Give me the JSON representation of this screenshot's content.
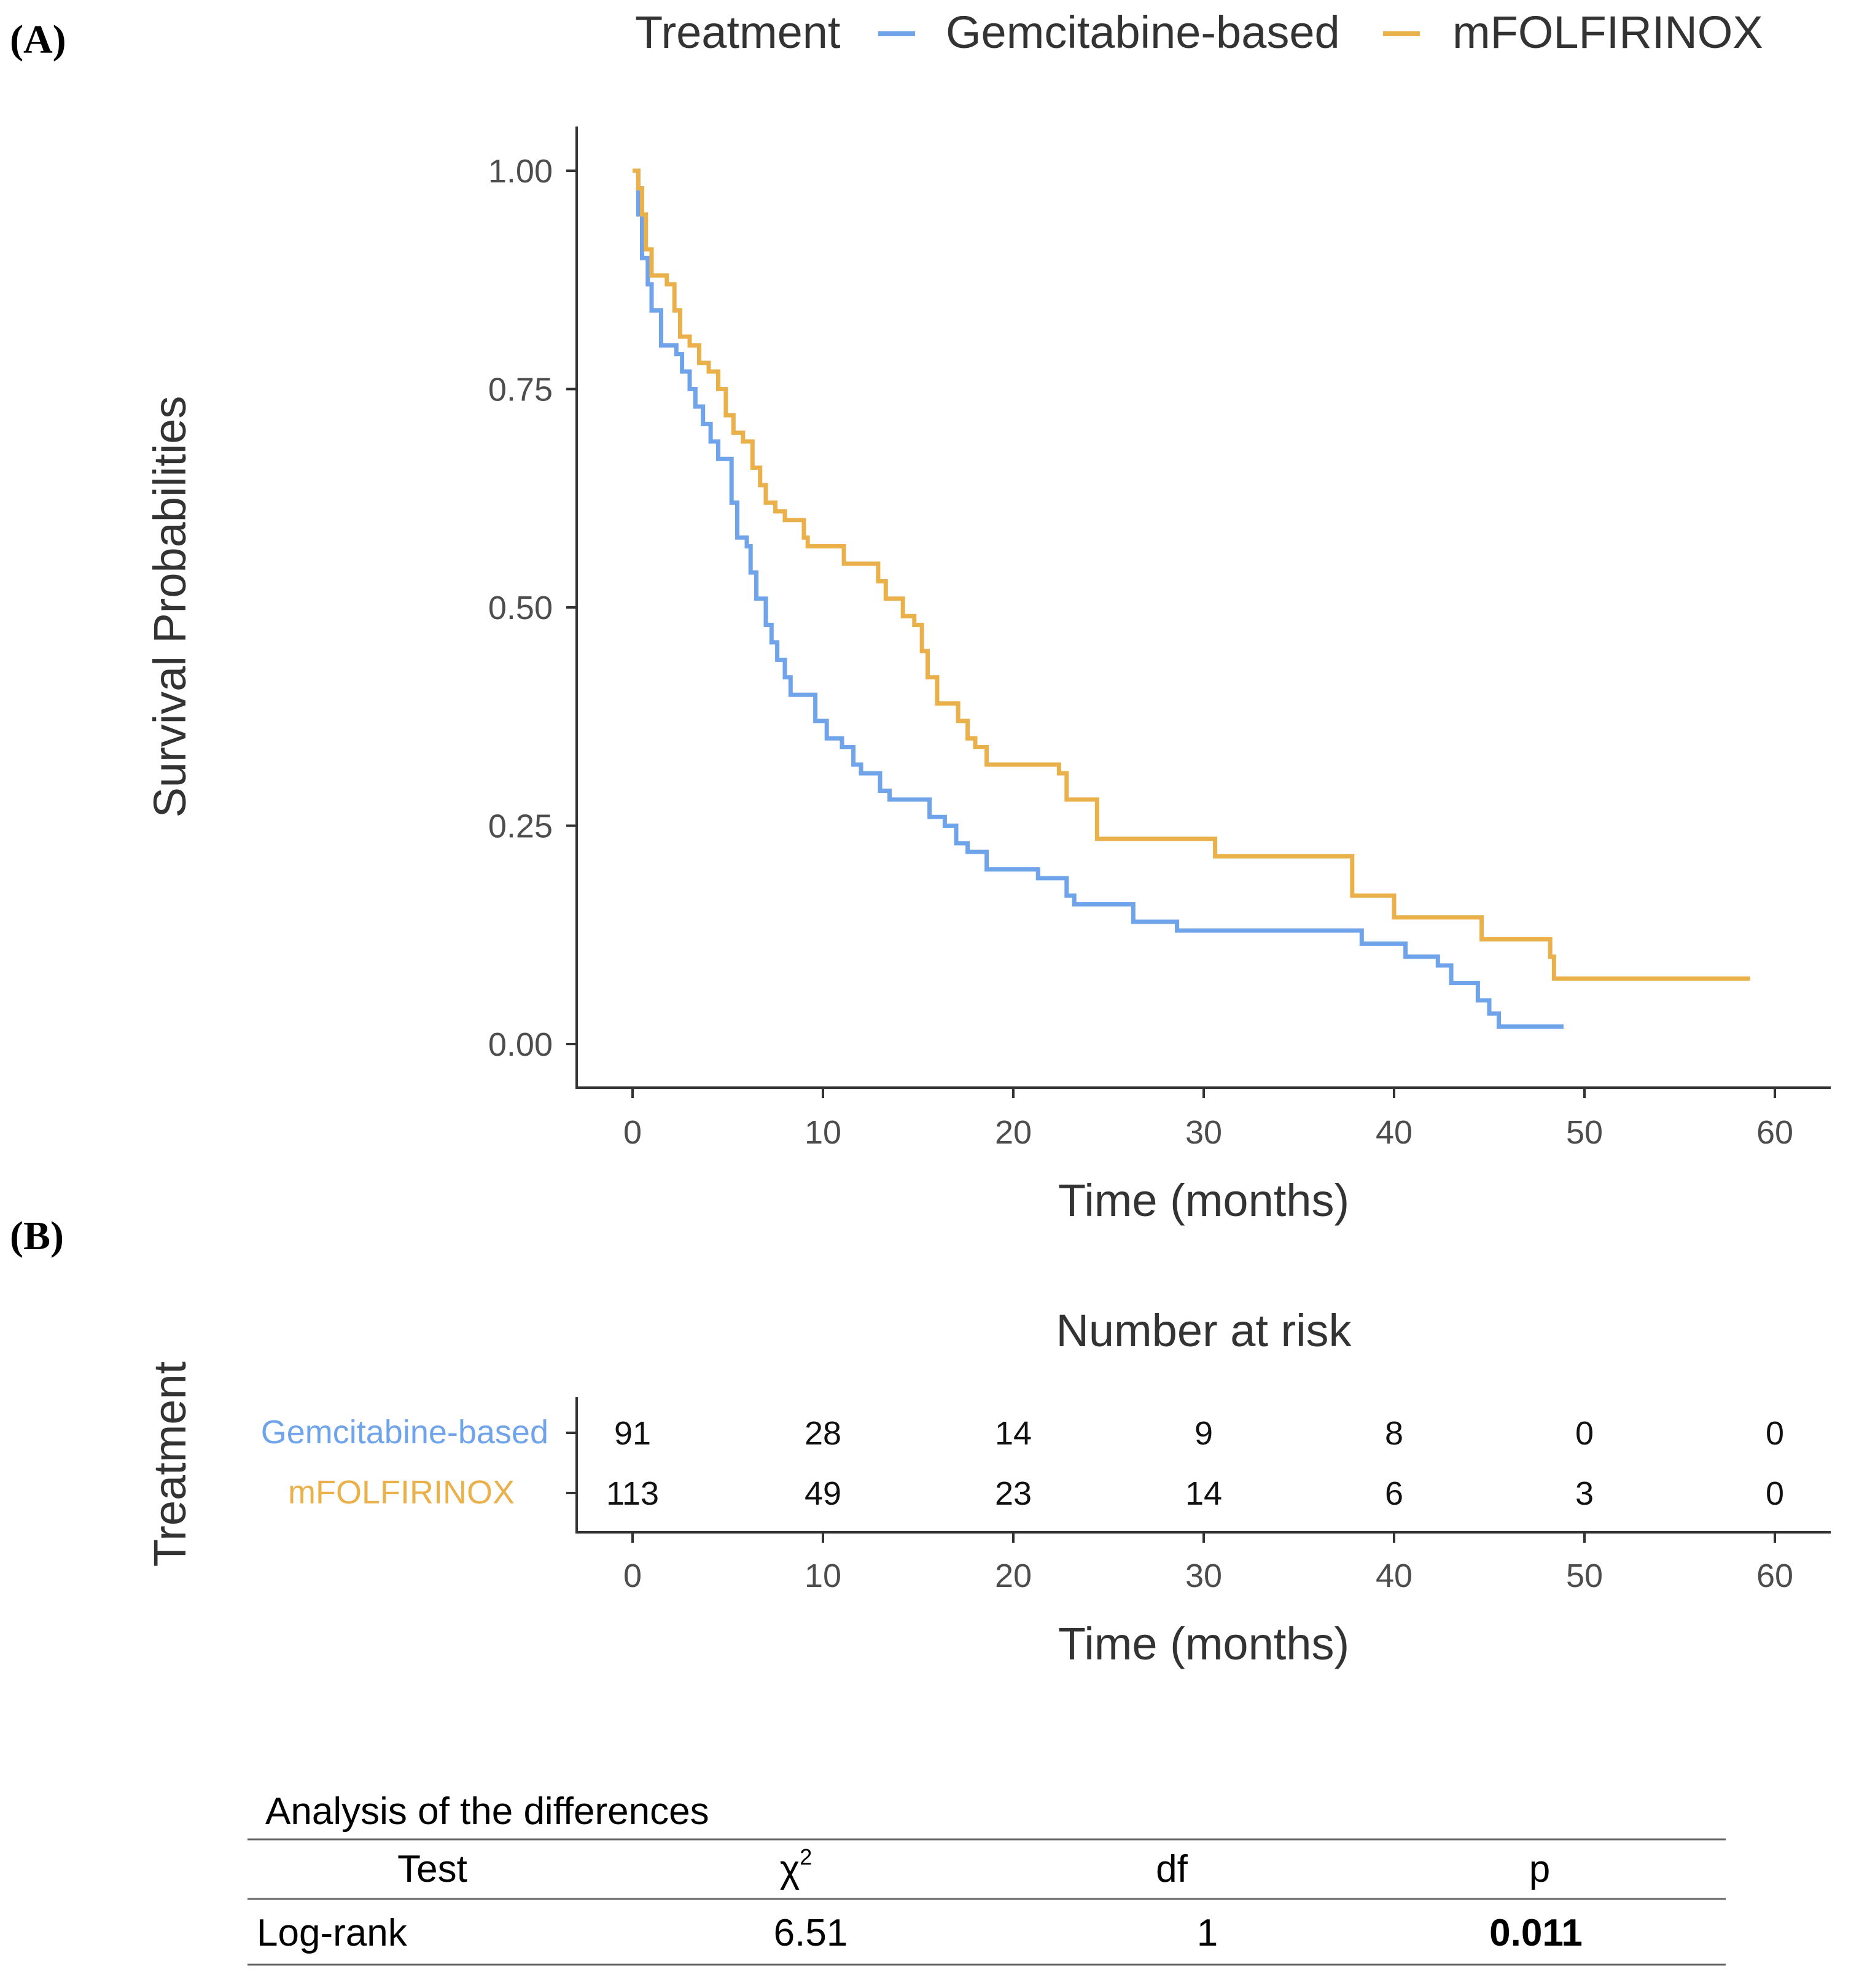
{
  "panels": {
    "a": "(A)",
    "b": "(B)"
  },
  "colors": {
    "gemcitabine": "#6fa3ea",
    "mfolfirinox": "#eab04a",
    "axis": "#333333"
  },
  "chart_data": {
    "type": "line",
    "subtype": "kaplan-meier step",
    "legend": {
      "title": "Treatment",
      "placement": "top",
      "entries": [
        "Gemcitabine-based",
        "mFOLFIRINOX"
      ]
    },
    "xlabel": "Time (months)",
    "ylabel": "Survival Probabilities",
    "xlim": [
      0,
      60
    ],
    "ylim": [
      0,
      1
    ],
    "xticks": [
      "0",
      "10",
      "20",
      "30",
      "40",
      "50",
      "60"
    ],
    "yticks": [
      "0.00",
      "0.25",
      "0.50",
      "0.75",
      "1.00"
    ],
    "grid": false,
    "series": [
      {
        "name": "Gemcitabine-based",
        "points": [
          [
            0,
            1.0
          ],
          [
            0.3,
            0.95
          ],
          [
            0.5,
            0.9
          ],
          [
            0.8,
            0.87
          ],
          [
            1,
            0.84
          ],
          [
            1.5,
            0.8
          ],
          [
            2.3,
            0.79
          ],
          [
            2.6,
            0.77
          ],
          [
            3,
            0.75
          ],
          [
            3.3,
            0.73
          ],
          [
            3.7,
            0.71
          ],
          [
            4.1,
            0.69
          ],
          [
            4.5,
            0.67
          ],
          [
            5.2,
            0.62
          ],
          [
            5.5,
            0.58
          ],
          [
            6,
            0.57
          ],
          [
            6.2,
            0.54
          ],
          [
            6.5,
            0.51
          ],
          [
            7,
            0.48
          ],
          [
            7.3,
            0.46
          ],
          [
            7.6,
            0.44
          ],
          [
            8,
            0.42
          ],
          [
            8.3,
            0.4
          ],
          [
            9.6,
            0.37
          ],
          [
            10.2,
            0.35
          ],
          [
            11,
            0.34
          ],
          [
            11.6,
            0.32
          ],
          [
            12,
            0.31
          ],
          [
            13,
            0.29
          ],
          [
            13.5,
            0.28
          ],
          [
            15.6,
            0.26
          ],
          [
            16.4,
            0.25
          ],
          [
            17,
            0.23
          ],
          [
            17.6,
            0.22
          ],
          [
            18.6,
            0.2
          ],
          [
            21.3,
            0.19
          ],
          [
            22.8,
            0.17
          ],
          [
            23.2,
            0.16
          ],
          [
            26.3,
            0.14
          ],
          [
            28.6,
            0.13
          ],
          [
            38.3,
            0.115
          ],
          [
            40.6,
            0.1
          ],
          [
            42.3,
            0.09
          ],
          [
            43,
            0.07
          ],
          [
            44.4,
            0.05
          ],
          [
            45,
            0.035
          ],
          [
            45.5,
            0.02
          ],
          [
            48.9,
            0.02
          ]
        ]
      },
      {
        "name": "mFOLFIRINOX",
        "points": [
          [
            0,
            1.0
          ],
          [
            0.3,
            0.98
          ],
          [
            0.5,
            0.95
          ],
          [
            0.7,
            0.91
          ],
          [
            1,
            0.88
          ],
          [
            1.8,
            0.87
          ],
          [
            2.2,
            0.84
          ],
          [
            2.5,
            0.81
          ],
          [
            3,
            0.8
          ],
          [
            3.5,
            0.78
          ],
          [
            4,
            0.77
          ],
          [
            4.5,
            0.75
          ],
          [
            4.9,
            0.72
          ],
          [
            5.3,
            0.7
          ],
          [
            5.8,
            0.69
          ],
          [
            6.3,
            0.66
          ],
          [
            6.7,
            0.64
          ],
          [
            7,
            0.62
          ],
          [
            7.5,
            0.61
          ],
          [
            8,
            0.6
          ],
          [
            9,
            0.58
          ],
          [
            9.2,
            0.57
          ],
          [
            11.1,
            0.55
          ],
          [
            12.9,
            0.53
          ],
          [
            13.3,
            0.51
          ],
          [
            14.2,
            0.49
          ],
          [
            14.8,
            0.48
          ],
          [
            15.2,
            0.45
          ],
          [
            15.5,
            0.42
          ],
          [
            16,
            0.39
          ],
          [
            17.1,
            0.37
          ],
          [
            17.6,
            0.35
          ],
          [
            18,
            0.34
          ],
          [
            18.6,
            0.32
          ],
          [
            22.4,
            0.31
          ],
          [
            22.8,
            0.28
          ],
          [
            24.4,
            0.235
          ],
          [
            30.6,
            0.215
          ],
          [
            37.8,
            0.17
          ],
          [
            40,
            0.145
          ],
          [
            44.6,
            0.12
          ],
          [
            48.2,
            0.1
          ],
          [
            48.4,
            0.075
          ],
          [
            58.7,
            0.075
          ]
        ]
      }
    ]
  },
  "risk_table": {
    "title": "Number at risk",
    "ylabel": "Treatment",
    "xlabel": "Time (months)",
    "xticks": [
      "0",
      "10",
      "20",
      "30",
      "40",
      "50",
      "60"
    ],
    "rows": [
      {
        "label": "Gemcitabine-based",
        "values": [
          "91",
          "28",
          "14",
          "9",
          "8",
          "0",
          "0"
        ]
      },
      {
        "label": "mFOLFIRINOX",
        "values": [
          "113",
          "49",
          "23",
          "14",
          "6",
          "3",
          "0"
        ]
      }
    ]
  },
  "analysis": {
    "title": "Analysis of the differences",
    "headers": [
      "Test",
      "χ",
      "df",
      "p"
    ],
    "chi_sup": "2",
    "row": [
      "Log-rank",
      "6.51",
      "1",
      "0.011"
    ]
  }
}
